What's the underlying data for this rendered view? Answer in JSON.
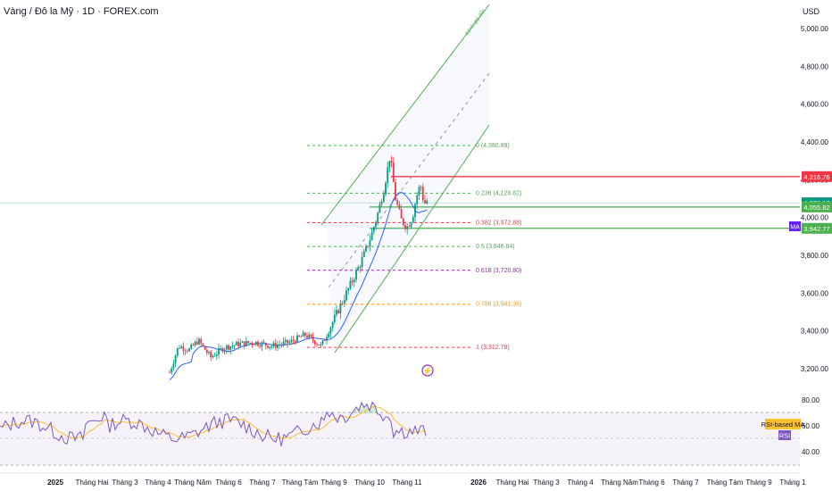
{
  "header": {
    "title": "Vàng / Đô la Mỹ · 1D · FOREX.com",
    "currency": "USD"
  },
  "chart_data": {
    "type": "candlestick",
    "price_axis": {
      "ticks": [
        "5,000.00",
        "4,800.00",
        "4,600.00",
        "4,400.00",
        "4,200.00",
        "4,000.00",
        "3,800.00",
        "3,600.00",
        "3,400.00",
        "3,200.00"
      ],
      "values": [
        5000,
        4800,
        4600,
        4400,
        4200,
        4000,
        3800,
        3600,
        3400,
        3200
      ],
      "ylim": [
        3130,
        5070
      ]
    },
    "rsi_axis": {
      "ticks": [
        "80.00",
        "60.00",
        "40.00"
      ],
      "values": [
        80,
        60,
        40
      ]
    },
    "time_axis": [
      "2025",
      "Tháng Hai",
      "Tháng 3",
      "Tháng 4",
      "Tháng Năm",
      "Tháng 6",
      "Tháng 7",
      "Tháng Tám",
      "Tháng 9",
      "Tháng 10",
      "Tháng 11",
      "2026",
      "Tháng Hai",
      "Tháng 3",
      "Tháng 4",
      "Tháng Năm",
      "Tháng 6",
      "Tháng 7",
      "Tháng Tám",
      "Tháng 9",
      "Tháng 1"
    ],
    "price_badges": [
      {
        "label": "4,216.76",
        "value": 4216.76,
        "color": "#f23645"
      },
      {
        "label": "4,078.10",
        "value": 4078.1,
        "color": "#089981"
      },
      {
        "label": "4,055.82",
        "value": 4055.82,
        "color": "#4caf50"
      },
      {
        "label": "3,942.77",
        "value": 3942.77,
        "color": "#4caf50"
      }
    ],
    "ma_badge": "MA",
    "channel_label": "Kênh giá dốc",
    "fib_levels": [
      {
        "label": "0 (4,380.89)",
        "value": 4380.89,
        "color": "#4caf50"
      },
      {
        "label": "0.236 (4,128.82)",
        "value": 4128.82,
        "color": "#4caf50"
      },
      {
        "label": "0.382 (3,972.88)",
        "value": 3972.88,
        "color": "#f23645"
      },
      {
        "label": "0.5 (3,846.84)",
        "value": 3846.84,
        "color": "#4caf50"
      },
      {
        "label": "0.618 (3,720.80)",
        "value": 3720.8,
        "color": "#9c27b0"
      },
      {
        "label": "0.786 (3,541.36)",
        "value": 3541.36,
        "color": "#ff9800"
      },
      {
        "label": "1 (3,312.78)",
        "value": 3312.78,
        "color": "#f23645"
      }
    ],
    "rsi_labels": {
      "ma": "RSI-based MA",
      "rsi": "RSI"
    },
    "colors": {
      "up": "#089981",
      "down": "#f23645",
      "ma": "#2962ff",
      "rsi": "#7e57c2",
      "rsi_ma": "#fbc02d"
    }
  }
}
